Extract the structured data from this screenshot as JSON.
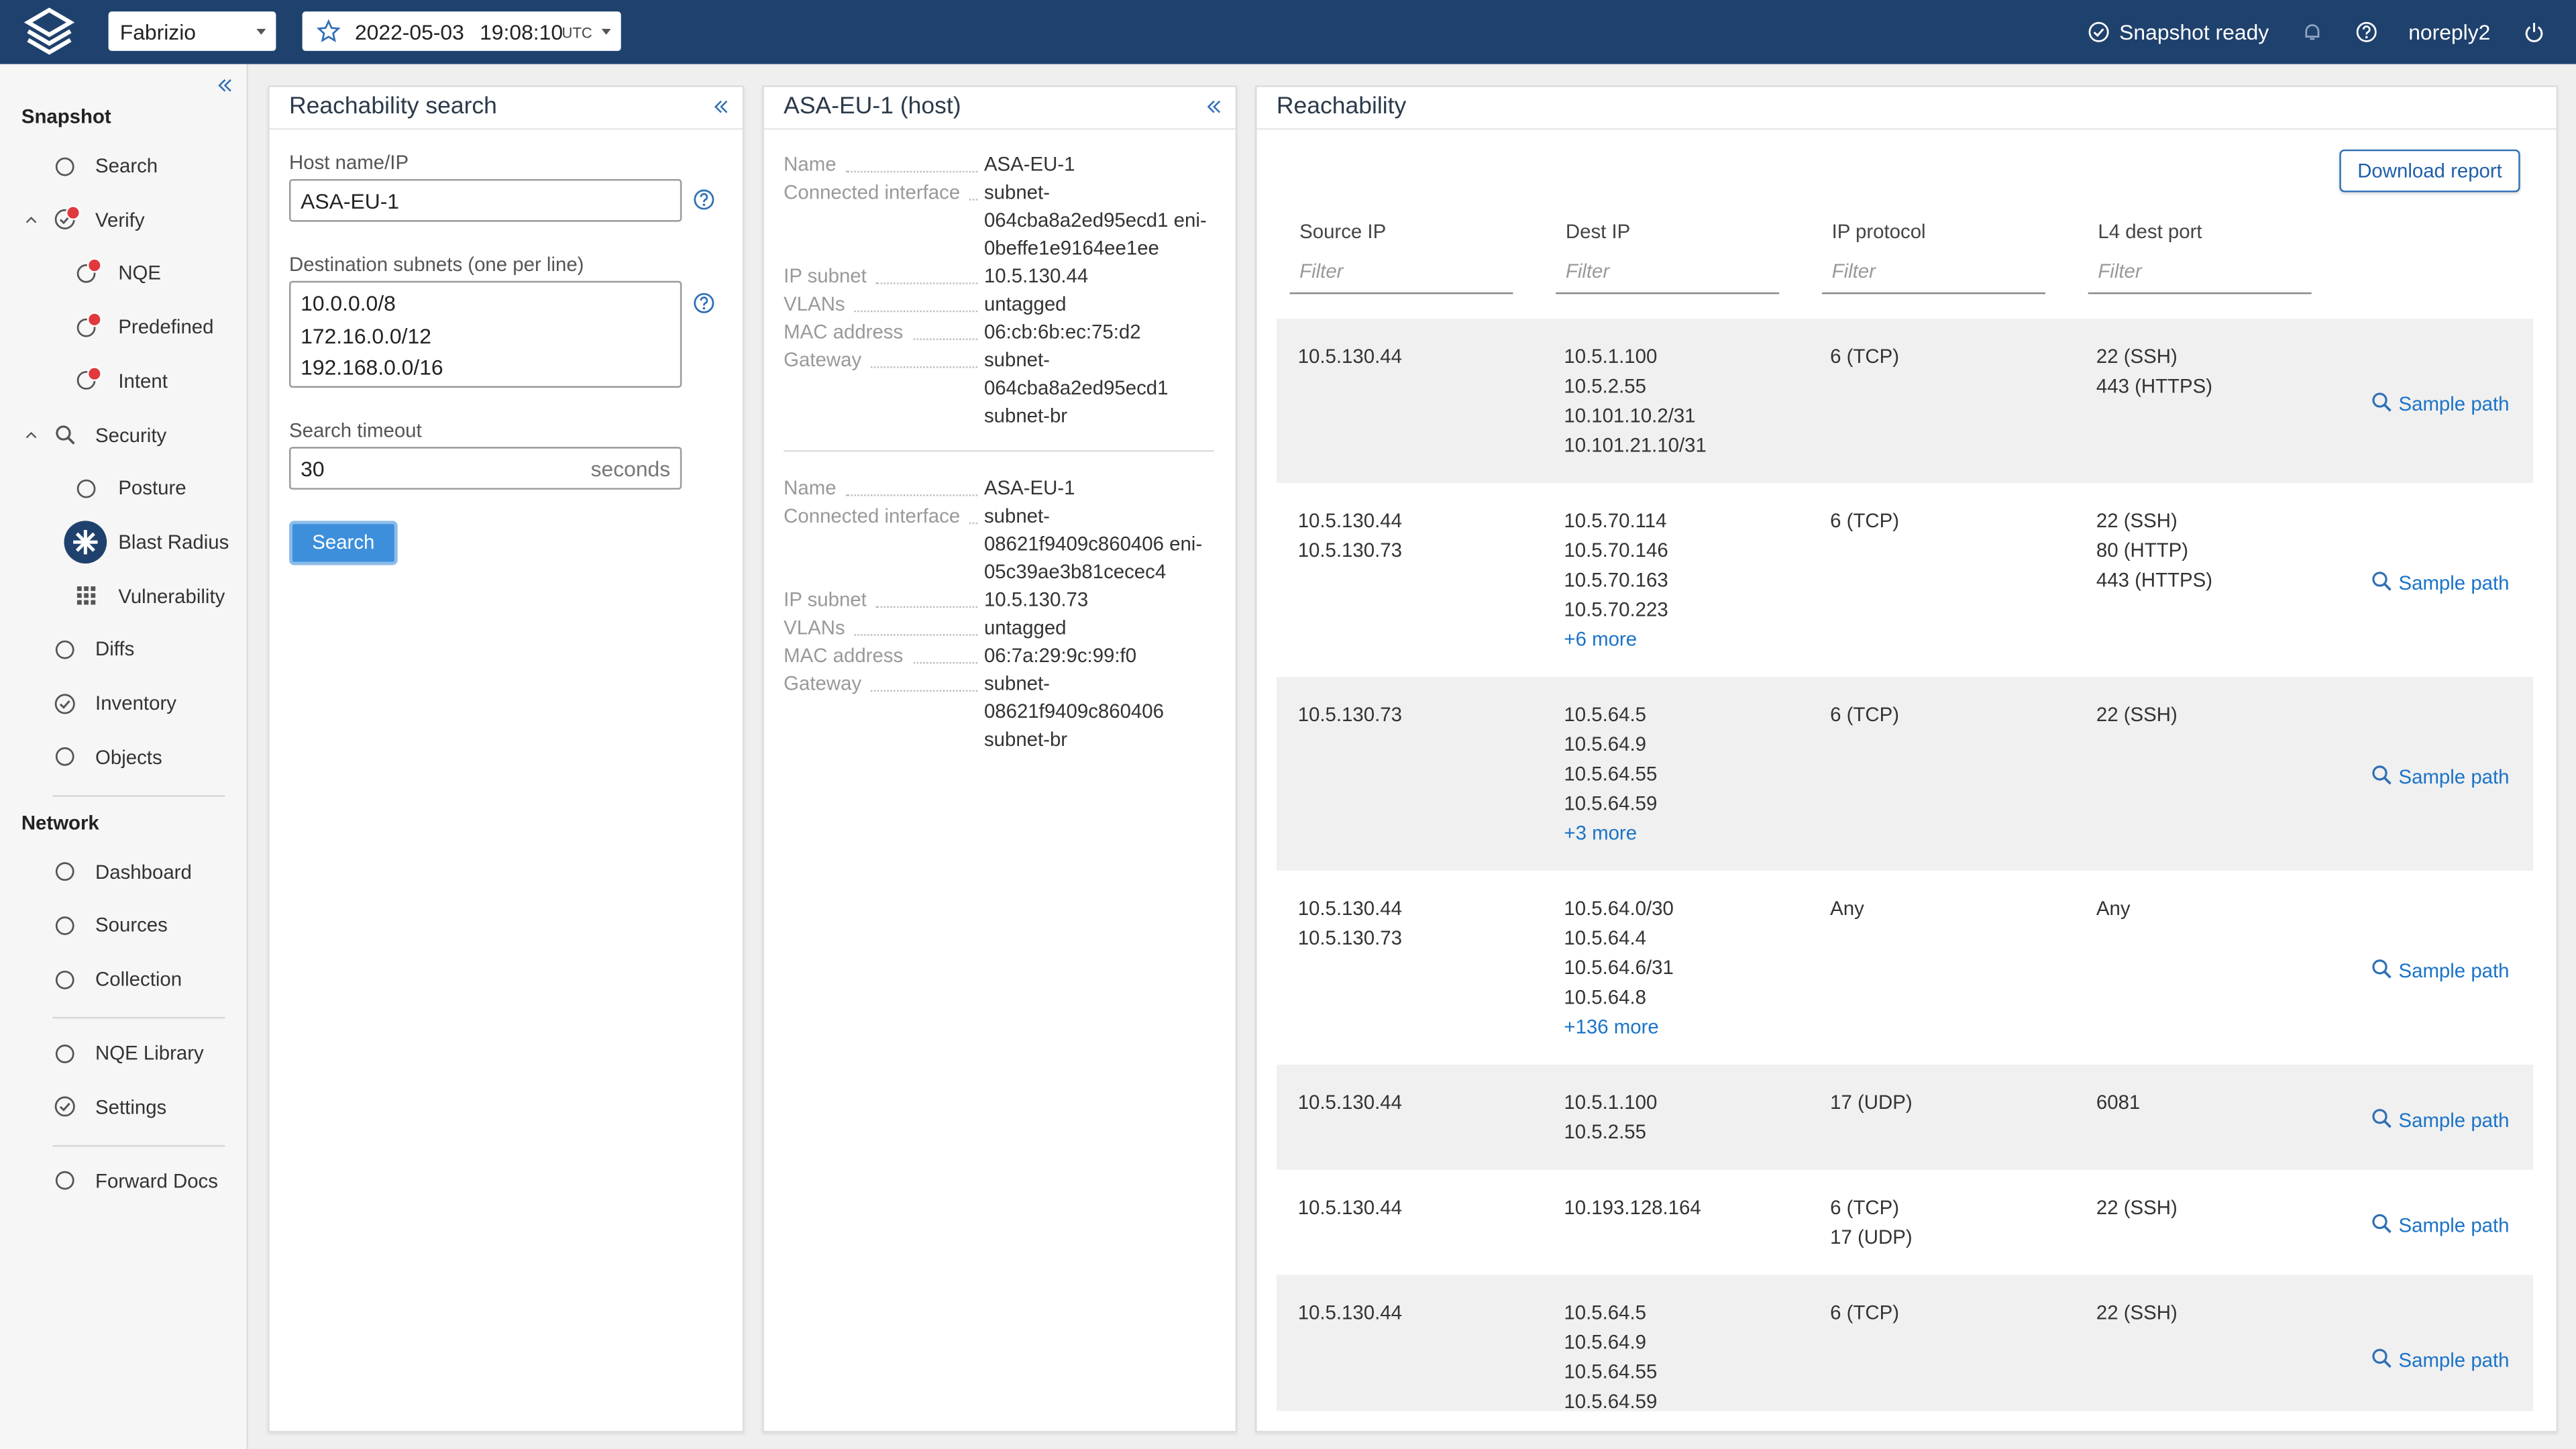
{
  "topbar": {
    "workspace": "Fabrizio",
    "date": "2022-05-03",
    "time": "19:08:10",
    "timezone": "UTC",
    "status": "Snapshot ready",
    "user": "noreply2"
  },
  "sidebar": {
    "groups": [
      {
        "title": "Snapshot",
        "items": [
          {
            "label": "Search"
          },
          {
            "label": "Verify",
            "badge": true,
            "children": [
              {
                "label": "NQE",
                "badge": true
              },
              {
                "label": "Predefined",
                "badge": true
              },
              {
                "label": "Intent",
                "badge": true
              }
            ]
          },
          {
            "label": "Security",
            "children": [
              {
                "label": "Posture"
              },
              {
                "label": "Blast Radius",
                "selected": true
              },
              {
                "label": "Vulnerability"
              }
            ]
          },
          {
            "label": "Diffs"
          },
          {
            "label": "Inventory"
          },
          {
            "label": "Objects"
          }
        ]
      },
      {
        "title": "Network",
        "items": [
          {
            "label": "Dashboard"
          },
          {
            "label": "Sources"
          },
          {
            "label": "Collection"
          }
        ]
      },
      {
        "items": [
          {
            "label": "NQE Library"
          },
          {
            "label": "Settings"
          }
        ]
      },
      {
        "items": [
          {
            "label": "Forward Docs"
          }
        ]
      }
    ]
  },
  "search": {
    "title": "Reachability search",
    "host_label": "Host name/IP",
    "host_value": "ASA-EU-1",
    "subnets_label": "Destination subnets (one per line)",
    "subnets": [
      "10.0.0.0/8",
      "172.16.0.0/12",
      "192.168.0.0/16"
    ],
    "timeout_label": "Search timeout",
    "timeout_value": "30",
    "timeout_unit": "seconds",
    "button": "Search"
  },
  "host": {
    "title": "ASA-EU-1 (host)",
    "interfaces": [
      {
        "fields": [
          {
            "label": "Name",
            "value": "ASA-EU-1",
            "link": true
          },
          {
            "label": "Connected interface",
            "value": "subnet-064cba8a2ed95ecd1 eni-0beffe1e9164ee1ee",
            "link": true
          },
          {
            "label": "IP subnet",
            "value": "10.5.130.44",
            "link": true
          },
          {
            "label": "VLANs",
            "value": "untagged"
          },
          {
            "label": "MAC address",
            "value": "06:cb:6b:ec:75:d2"
          },
          {
            "label": "Gateway",
            "value": "subnet-064cba8a2ed95ecd1 subnet-br",
            "link": true
          }
        ]
      },
      {
        "fields": [
          {
            "label": "Name",
            "value": "ASA-EU-1",
            "link": true
          },
          {
            "label": "Connected interface",
            "value": "subnet-08621f9409c860406 eni-05c39ae3b81cecec4",
            "link": true
          },
          {
            "label": "IP subnet",
            "value": "10.5.130.73",
            "link": true
          },
          {
            "label": "VLANs",
            "value": "untagged"
          },
          {
            "label": "MAC address",
            "value": "06:7a:29:9c:99:f0"
          },
          {
            "label": "Gateway",
            "value": "subnet-08621f9409c860406 subnet-br",
            "link": true
          }
        ]
      }
    ]
  },
  "reachability": {
    "title": "Reachability",
    "download": "Download report",
    "columns": [
      "Source IP",
      "Dest IP",
      "IP protocol",
      "L4 dest port"
    ],
    "filter": "Filter",
    "sample_path": "Sample path",
    "rows": [
      {
        "source": [
          "10.5.130.44"
        ],
        "dest": [
          "10.5.1.100",
          "10.5.2.55",
          "10.101.10.2/31",
          "10.101.21.10/31"
        ],
        "protocol": [
          "6 (TCP)"
        ],
        "port": [
          "22 (SSH)",
          "443 (HTTPS)"
        ]
      },
      {
        "source": [
          "10.5.130.44",
          "10.5.130.73"
        ],
        "dest": [
          "10.5.70.114",
          "10.5.70.146",
          "10.5.70.163",
          "10.5.70.223"
        ],
        "more": "+6 more",
        "protocol": [
          "6 (TCP)"
        ],
        "port": [
          "22 (SSH)",
          "80 (HTTP)",
          "443 (HTTPS)"
        ]
      },
      {
        "source": [
          "10.5.130.73"
        ],
        "dest": [
          "10.5.64.5",
          "10.5.64.9",
          "10.5.64.55",
          "10.5.64.59"
        ],
        "more": "+3 more",
        "protocol": [
          "6 (TCP)"
        ],
        "port": [
          "22 (SSH)"
        ]
      },
      {
        "source": [
          "10.5.130.44",
          "10.5.130.73"
        ],
        "dest": [
          "10.5.64.0/30",
          "10.5.64.4",
          "10.5.64.6/31",
          "10.5.64.8"
        ],
        "more": "+136 more",
        "protocol": [
          "Any"
        ],
        "port": [
          "Any"
        ]
      },
      {
        "source": [
          "10.5.130.44"
        ],
        "dest": [
          "10.5.1.100",
          "10.5.2.55"
        ],
        "protocol": [
          "17 (UDP)"
        ],
        "port": [
          "6081"
        ]
      },
      {
        "source": [
          "10.5.130.44"
        ],
        "dest": [
          "10.193.128.164"
        ],
        "protocol": [
          "6 (TCP)",
          "17 (UDP)"
        ],
        "port": [
          "22 (SSH)"
        ]
      },
      {
        "source": [
          "10.5.130.44"
        ],
        "dest": [
          "10.5.64.5",
          "10.5.64.9",
          "10.5.64.55",
          "10.5.64.59"
        ],
        "protocol": [
          "6 (TCP)"
        ],
        "port": [
          "22 (SSH)"
        ]
      }
    ]
  }
}
